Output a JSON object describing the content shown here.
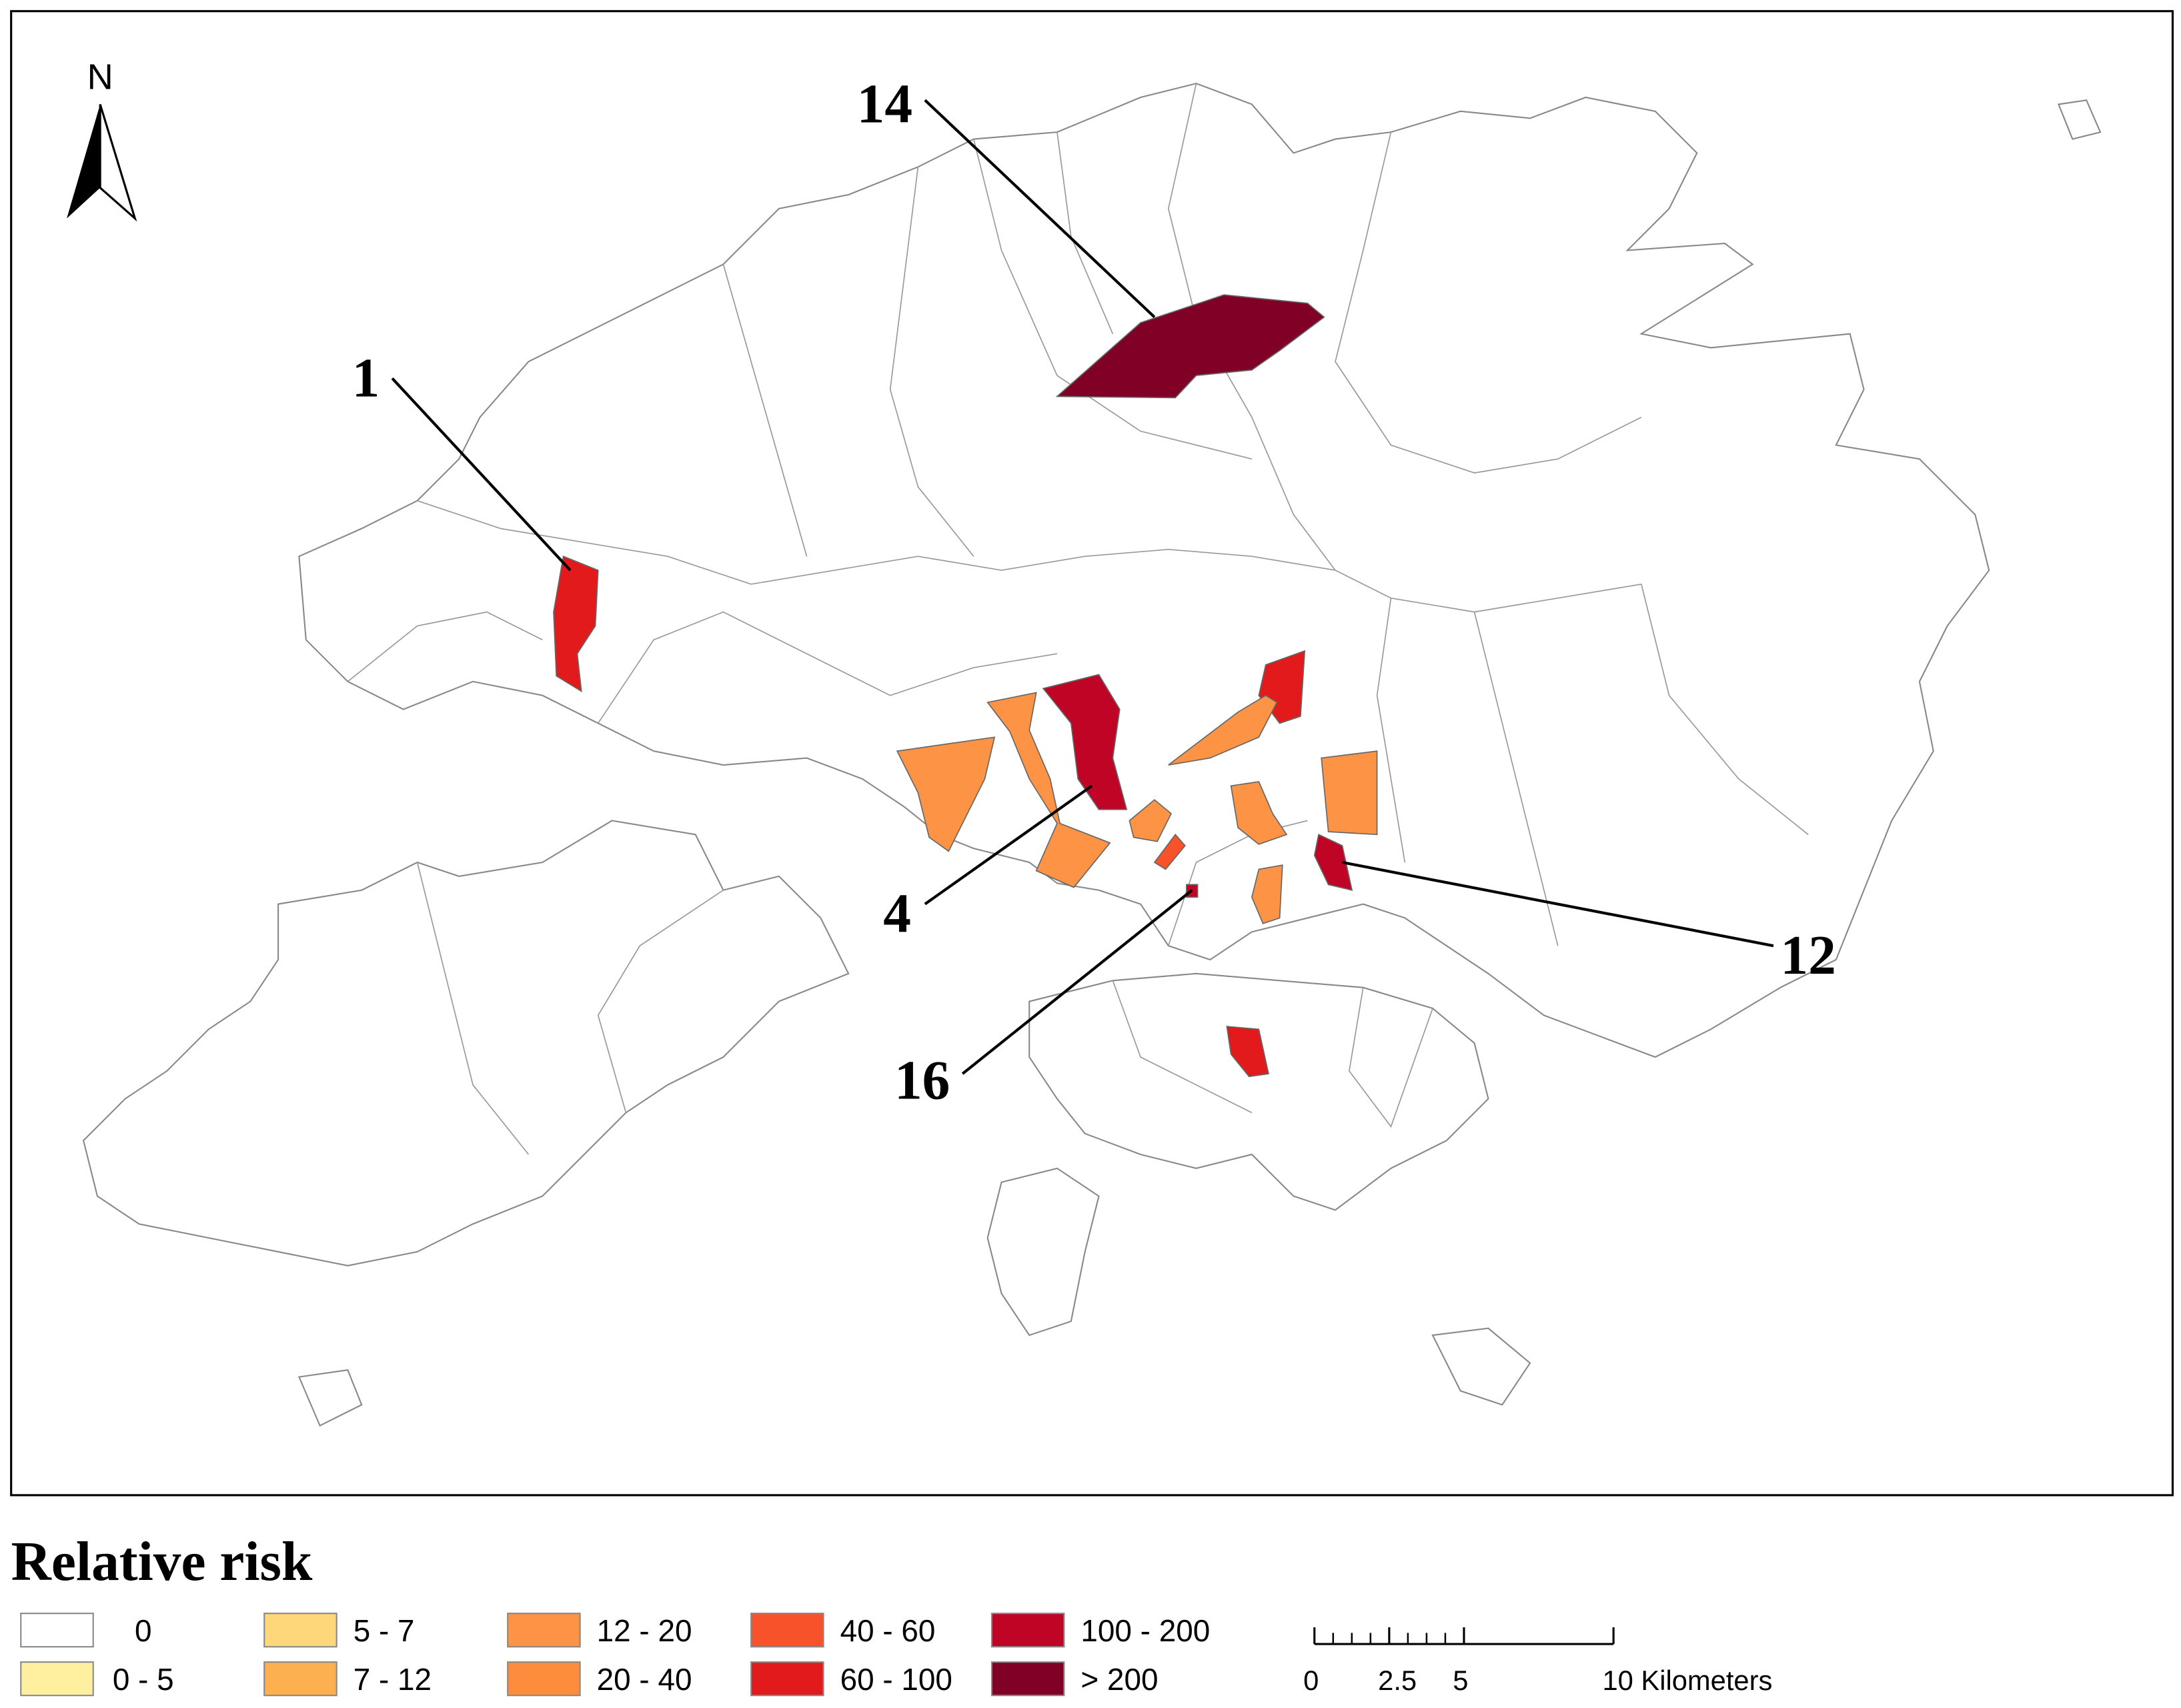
{
  "map": {
    "north_label": "N",
    "annotations": [
      "14",
      "1",
      "4",
      "12",
      "16"
    ]
  },
  "legend": {
    "title": "Relative risk",
    "items": [
      {
        "label": "0",
        "color": "#ffffff"
      },
      {
        "label": "0 - 5",
        "color": "#fff0a0"
      },
      {
        "label": "5 - 7",
        "color": "#fdd77a"
      },
      {
        "label": "7 - 12",
        "color": "#fdb050"
      },
      {
        "label": "12 - 20",
        "color": "#fd9345"
      },
      {
        "label": "20 - 40",
        "color": "#fd8c3c"
      },
      {
        "label": "40 - 60",
        "color": "#f7522a"
      },
      {
        "label": "60 - 100",
        "color": "#e31a1c"
      },
      {
        "label": "100 - 200",
        "color": "#c00426"
      },
      {
        "label": "> 200",
        "color": "#800026"
      }
    ]
  },
  "scale_bar": {
    "ticks": [
      0,
      2.5,
      5,
      {
        "value": 10,
        "label": "10 Kilometers"
      }
    ]
  }
}
